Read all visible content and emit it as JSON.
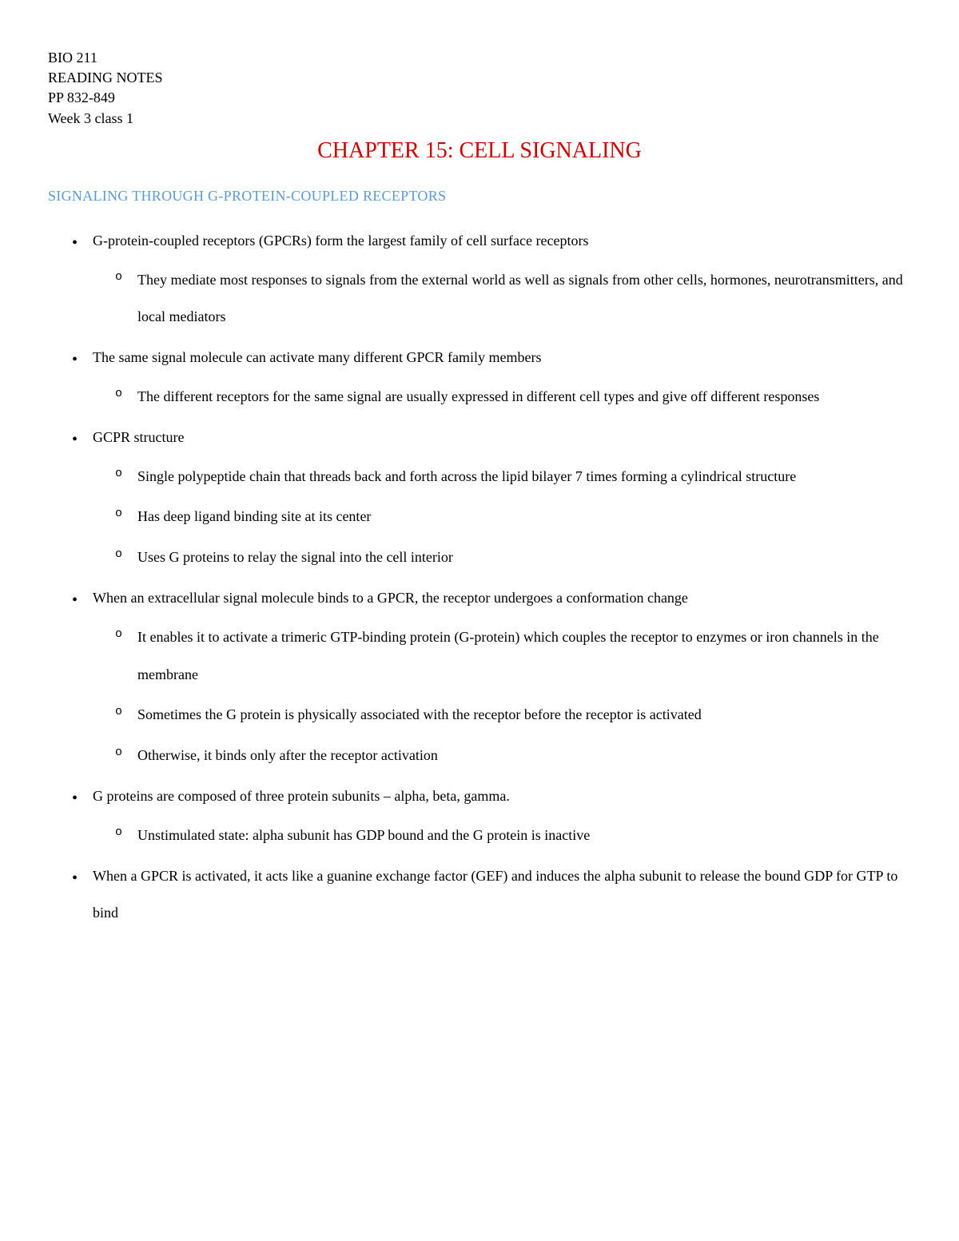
{
  "colors": {
    "chapter_title": "#cc0000",
    "section_heading": "#5b9bd5",
    "body_text": "#000000",
    "background": "#ffffff"
  },
  "typography": {
    "body_font": "Garamond, Georgia, Times New Roman, serif",
    "header_fontsize": 18,
    "chapter_title_fontsize": 28,
    "section_heading_fontsize": 18,
    "body_fontsize": 18,
    "line_height": 2.6
  },
  "header": {
    "course": "BIO 211",
    "doc_type": "READING NOTES",
    "pages": "PP 832-849",
    "week": "Week 3 class 1"
  },
  "chapter_title": "CHAPTER 15: CELL SIGNALING",
  "section_heading": "SIGNALING THROUGH G-PROTEIN-COUPLED RECEPTORS",
  "bullets": [
    {
      "text": "G-protein-coupled receptors (GPCRs) form the largest family of cell surface receptors",
      "sub": [
        "They mediate most responses to signals from the external world as well as signals from other cells, hormones, neurotransmitters, and local mediators"
      ]
    },
    {
      "text": "The same signal molecule can activate many different GPCR family members",
      "sub": [
        "The different receptors for the same signal are usually expressed in different cell types and give off different responses"
      ]
    },
    {
      "text": "GCPR structure",
      "sub": [
        "Single polypeptide chain that threads back and forth across the lipid bilayer 7 times forming a cylindrical structure",
        "Has deep ligand binding site at its center",
        "Uses G proteins to relay the signal into the cell interior"
      ]
    },
    {
      "text": "When an extracellular signal molecule binds to a GPCR, the receptor undergoes a conformation change",
      "sub": [
        "It enables it to activate a trimeric GTP-binding protein (G-protein) which couples the receptor to enzymes or iron channels in the membrane",
        "Sometimes the G protein is physically associated with the receptor before the receptor is activated",
        "Otherwise, it binds only after the receptor activation"
      ]
    },
    {
      "text": "G proteins are composed of three protein subunits – alpha, beta, gamma.",
      "sub": [
        "Unstimulated state: alpha subunit has GDP bound and the G protein is inactive"
      ]
    },
    {
      "text": "When a GPCR is activated, it acts like a guanine exchange factor (GEF) and induces the alpha subunit to release the bound GDP for GTP to bind",
      "sub": []
    }
  ]
}
